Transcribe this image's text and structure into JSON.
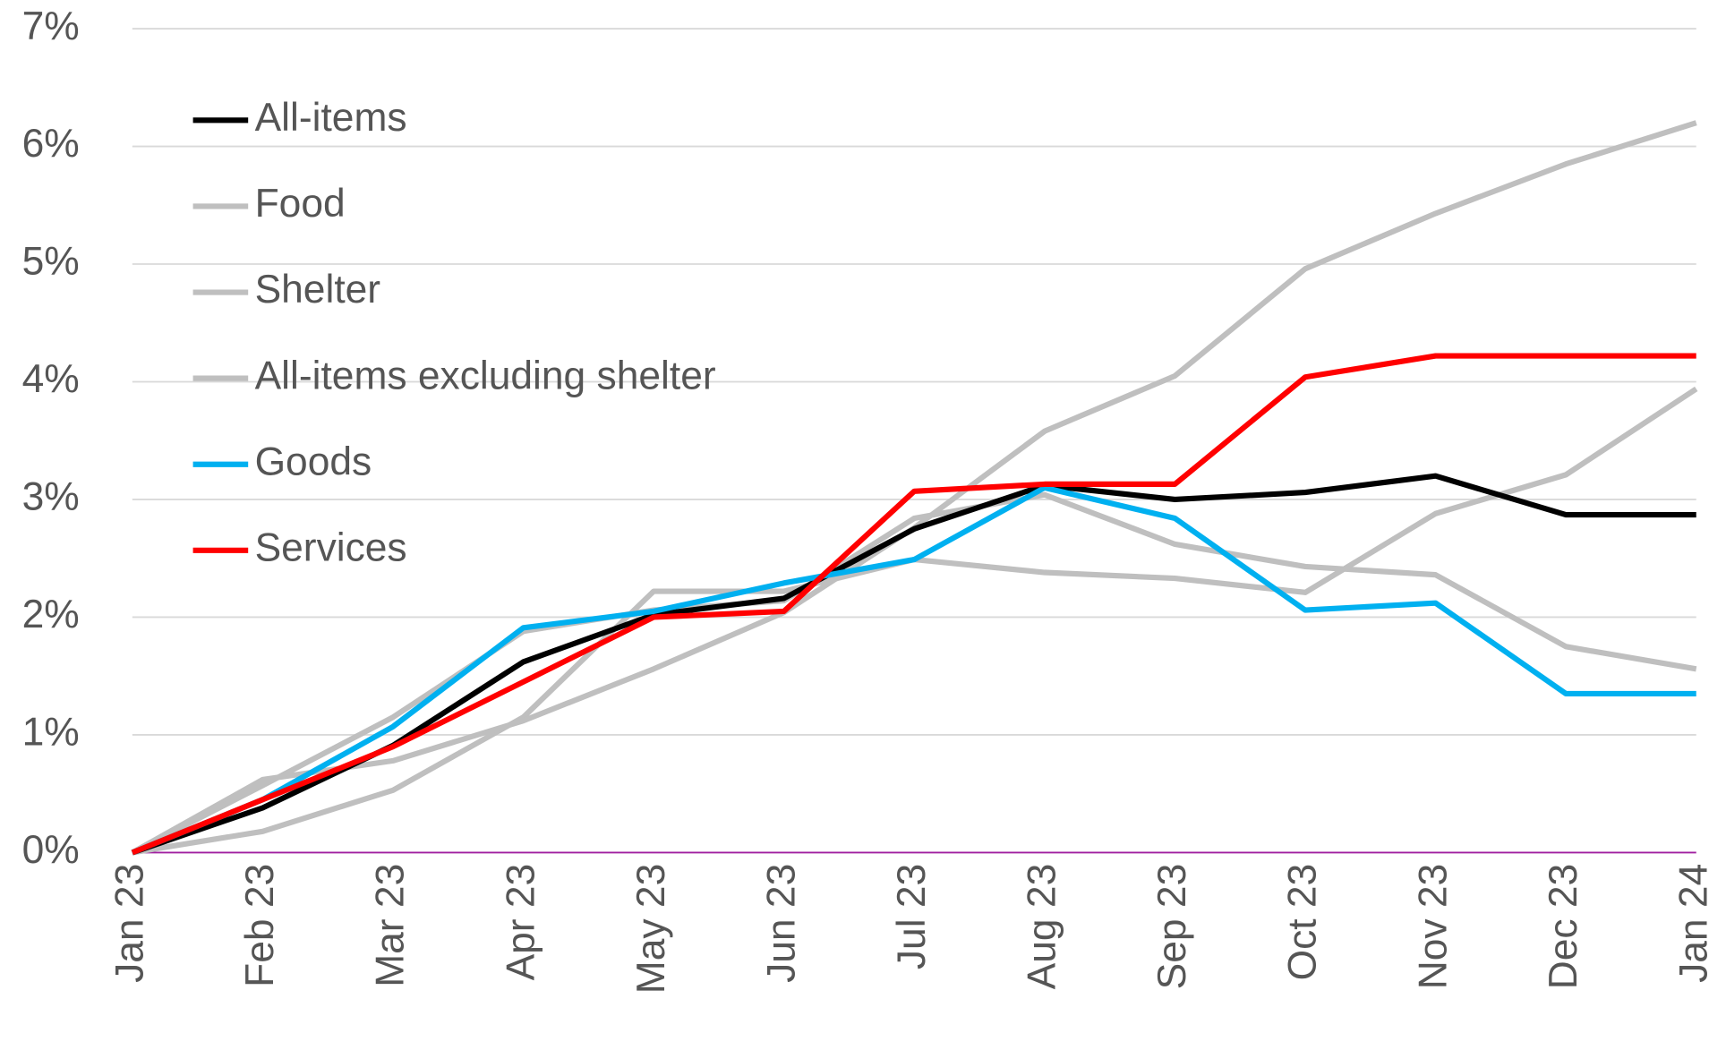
{
  "chart_data": {
    "type": "line",
    "categories": [
      "Jan 23",
      "Feb 23",
      "Mar 23",
      "Apr 23",
      "May 23",
      "Jun 23",
      "Jul 23",
      "Aug 23",
      "Sep 23",
      "Oct 23",
      "Nov 23",
      "Dec 23",
      "Jan 24"
    ],
    "ylim": [
      0,
      7
    ],
    "yticks": [
      {
        "value": 0,
        "label": "0%"
      },
      {
        "value": 1,
        "label": "1%"
      },
      {
        "value": 2,
        "label": "2%"
      },
      {
        "value": 3,
        "label": "3%"
      },
      {
        "value": 4,
        "label": "4%"
      },
      {
        "value": 5,
        "label": "5%"
      },
      {
        "value": 6,
        "label": "6%"
      },
      {
        "value": 7,
        "label": "7%"
      }
    ],
    "grid": true,
    "grid_color": "#d9d9d9",
    "zero_line_color": "#a020a0",
    "legend": "upper left",
    "series": [
      {
        "name": "All-items",
        "color": "#000000",
        "values": [
          0,
          0.38,
          0.91,
          1.62,
          2.02,
          2.16,
          2.75,
          3.12,
          3.0,
          3.06,
          3.2,
          2.87,
          2.87
        ]
      },
      {
        "name": "Food",
        "color": "#bfbfbf",
        "values": [
          0,
          0.18,
          0.53,
          1.15,
          2.22,
          2.22,
          2.49,
          2.38,
          2.33,
          2.21,
          2.88,
          3.21,
          3.94
        ]
      },
      {
        "name": "Shelter",
        "color": "#bfbfbf",
        "values": [
          0,
          0.62,
          0.78,
          1.12,
          1.56,
          2.04,
          2.76,
          3.58,
          4.05,
          4.96,
          5.43,
          5.85,
          6.2
        ]
      },
      {
        "name": "All-items excluding shelter",
        "color": "#bfbfbf",
        "values": [
          0,
          0.57,
          1.15,
          1.88,
          2.06,
          2.14,
          2.84,
          3.04,
          2.62,
          2.43,
          2.36,
          1.75,
          1.56
        ]
      },
      {
        "name": "Goods",
        "color": "#00b0f0",
        "values": [
          0,
          0.45,
          1.07,
          1.91,
          2.05,
          2.29,
          2.49,
          3.1,
          2.84,
          2.06,
          2.12,
          1.35,
          1.35
        ]
      },
      {
        "name": "Services",
        "color": "#ff0000",
        "values": [
          0,
          0.45,
          0.9,
          1.45,
          2.0,
          2.05,
          3.07,
          3.13,
          3.13,
          4.04,
          4.22,
          4.22,
          4.22
        ]
      }
    ]
  }
}
